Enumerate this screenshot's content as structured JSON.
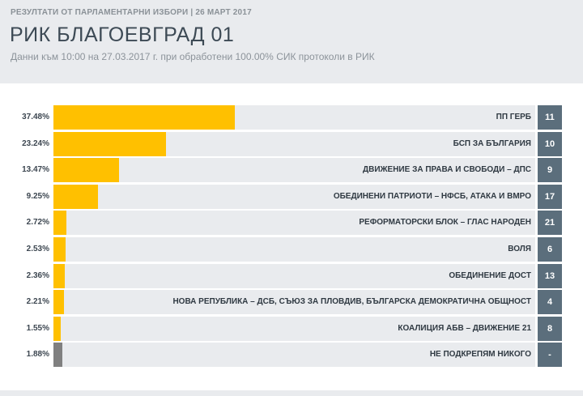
{
  "header": {
    "kicker": "РЕЗУЛТАТИ ОТ ПАРЛАМЕНТАРНИ ИЗБОРИ | 26 МАРТ 2017",
    "title": "РИК БЛАГОЕВГРАД 01",
    "subtitle": "Данни към 10:00 на 27.03.2017 г. при обработени 100.00% СИК протоколи в РИК"
  },
  "colors": {
    "bar": "#ffc000",
    "bar_none": "#808080",
    "seat_box": "#5b6e7c",
    "track": "#e9ebee"
  },
  "results": [
    {
      "pct_label": "37.48%",
      "pct": 37.48,
      "name": "ПП ГЕРБ",
      "seats": "11",
      "kind": "party"
    },
    {
      "pct_label": "23.24%",
      "pct": 23.24,
      "name": "БСП ЗА БЪЛГАРИЯ",
      "seats": "10",
      "kind": "party"
    },
    {
      "pct_label": "13.47%",
      "pct": 13.47,
      "name": "ДВИЖЕНИЕ ЗА ПРАВА И СВОБОДИ – ДПС",
      "seats": "9",
      "kind": "party"
    },
    {
      "pct_label": "9.25%",
      "pct": 9.25,
      "name": "ОБЕДИНЕНИ ПАТРИОТИ – НФСБ, АТАКА И ВМРО",
      "seats": "17",
      "kind": "party"
    },
    {
      "pct_label": "2.72%",
      "pct": 2.72,
      "name": "РЕФОРМАТОРСКИ БЛОК – ГЛАС НАРОДЕН",
      "seats": "21",
      "kind": "party"
    },
    {
      "pct_label": "2.53%",
      "pct": 2.53,
      "name": "ВОЛЯ",
      "seats": "6",
      "kind": "party"
    },
    {
      "pct_label": "2.36%",
      "pct": 2.36,
      "name": "ОБЕДИНЕНИЕ ДОСТ",
      "seats": "13",
      "kind": "party"
    },
    {
      "pct_label": "2.21%",
      "pct": 2.21,
      "name": "НОВА РЕПУБЛИКА – ДСБ, СЪЮЗ ЗА ПЛОВДИВ, БЪЛГАРСКА ДЕМОКРАТИЧНА ОБЩНОСТ",
      "seats": "4",
      "kind": "party"
    },
    {
      "pct_label": "1.55%",
      "pct": 1.55,
      "name": "КОАЛИЦИЯ АБВ – ДВИЖЕНИЕ 21",
      "seats": "8",
      "kind": "party"
    },
    {
      "pct_label": "1.88%",
      "pct": 1.88,
      "name": "НЕ ПОДКРЕПЯМ НИКОГО",
      "seats": "-",
      "kind": "none"
    }
  ]
}
